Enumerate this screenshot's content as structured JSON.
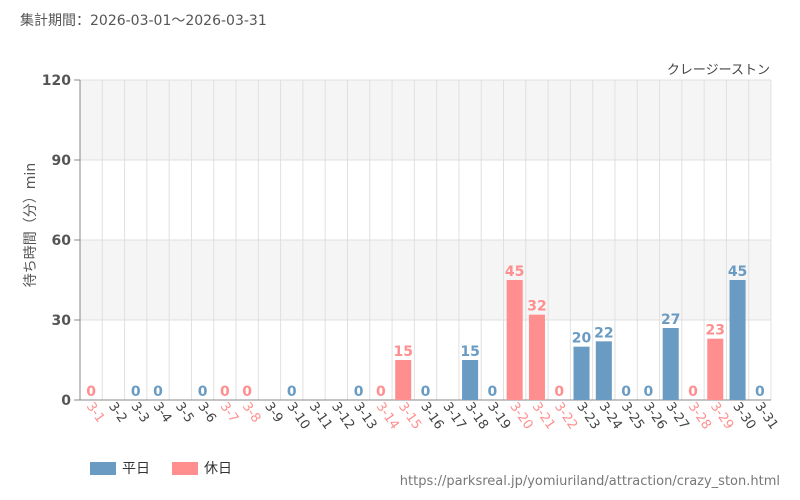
{
  "period": "集計期間：2026-03-01～2026-03-31",
  "source_url": "https://parksreal.jp/yomiuriland/attraction/crazy_ston.html",
  "legend": {
    "weekday": "平日",
    "holiday": "休日"
  },
  "colors": {
    "weekday": "#6a9bc3",
    "holiday": "#ff8f8f",
    "grid": "#e0e0e0",
    "band": "#f5f5f5"
  },
  "chart_data": {
    "type": "bar",
    "title": "クレージーストン",
    "ylabel": "待ち時間（分）min",
    "xlabel": "",
    "ylim": [
      0,
      120
    ],
    "yticks": [
      0,
      30,
      60,
      90,
      120
    ],
    "grid": true,
    "legend_position": "bottom-left",
    "categories": [
      "3-1",
      "3-2",
      "3-3",
      "3-4",
      "3-5",
      "3-6",
      "3-7",
      "3-8",
      "3-9",
      "3-10",
      "3-11",
      "3-12",
      "3-13",
      "3-14",
      "3-15",
      "3-16",
      "3-17",
      "3-18",
      "3-19",
      "3-20",
      "3-21",
      "3-22",
      "3-23",
      "3-24",
      "3-25",
      "3-26",
      "3-27",
      "3-28",
      "3-29",
      "3-30",
      "3-31"
    ],
    "values": [
      0,
      null,
      0,
      0,
      null,
      0,
      0,
      0,
      null,
      0,
      null,
      null,
      0,
      0,
      15,
      0,
      null,
      15,
      0,
      45,
      32,
      0,
      20,
      22,
      0,
      0,
      27,
      0,
      23,
      45,
      0
    ],
    "day_type": [
      "holiday",
      "weekday",
      "weekday",
      "weekday",
      "weekday",
      "weekday",
      "holiday",
      "holiday",
      "weekday",
      "weekday",
      "weekday",
      "weekday",
      "weekday",
      "holiday",
      "holiday",
      "weekday",
      "weekday",
      "weekday",
      "weekday",
      "holiday",
      "holiday",
      "holiday",
      "weekday",
      "weekday",
      "weekday",
      "weekday",
      "weekday",
      "holiday",
      "holiday",
      "weekday",
      "weekday"
    ]
  }
}
